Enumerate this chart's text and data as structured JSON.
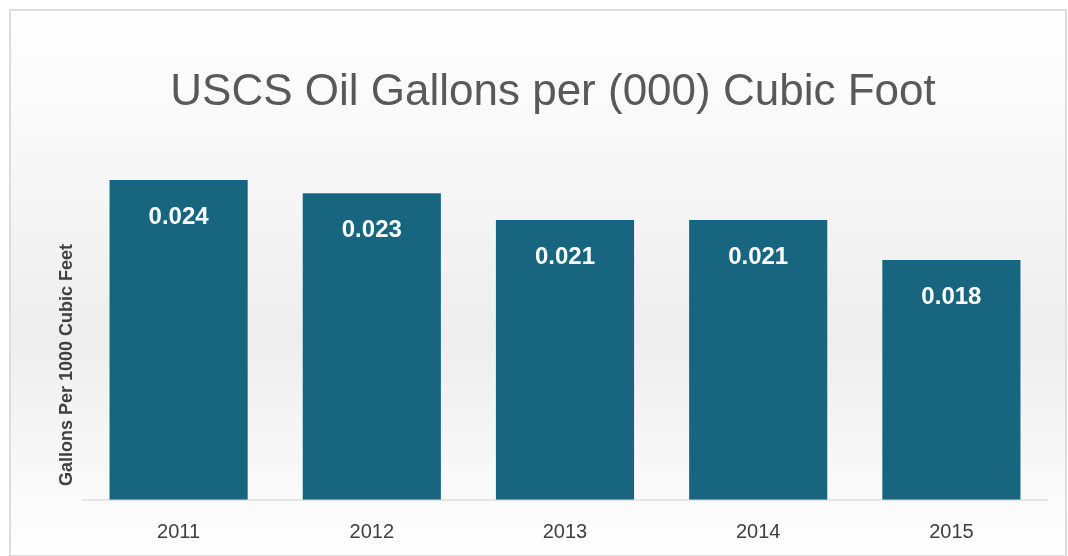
{
  "chart_data": {
    "type": "bar",
    "title": "USCS Oil Gallons per (000) Cubic Foot",
    "ylabel": "Gallons Per 1000 Cubic Feet",
    "categories": [
      "2011",
      "2012",
      "2013",
      "2014",
      "2015"
    ],
    "values": [
      0.024,
      0.023,
      0.021,
      0.021,
      0.018
    ],
    "color": "#17657e",
    "data_labels": true
  }
}
